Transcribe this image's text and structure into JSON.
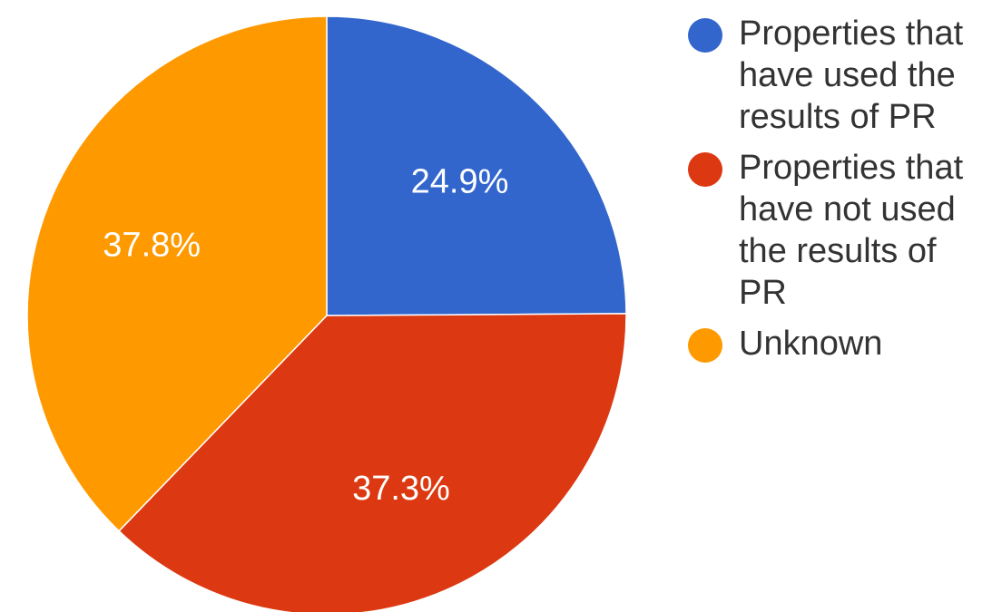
{
  "chart_data": {
    "type": "pie",
    "title": "",
    "slices": [
      {
        "name": "Properties that have used the results of PR",
        "value": 24.9,
        "label": "24.9%",
        "color": "#3366cc"
      },
      {
        "name": "Properties that have not used the results of PR",
        "value": 37.3,
        "label": "37.3%",
        "color": "#dc3912"
      },
      {
        "name": "Unknown",
        "value": 37.8,
        "label": "37.8%",
        "color": "#ff9900"
      }
    ],
    "start_angle_deg": 0,
    "direction": "clockwise",
    "legend_position": "right"
  }
}
